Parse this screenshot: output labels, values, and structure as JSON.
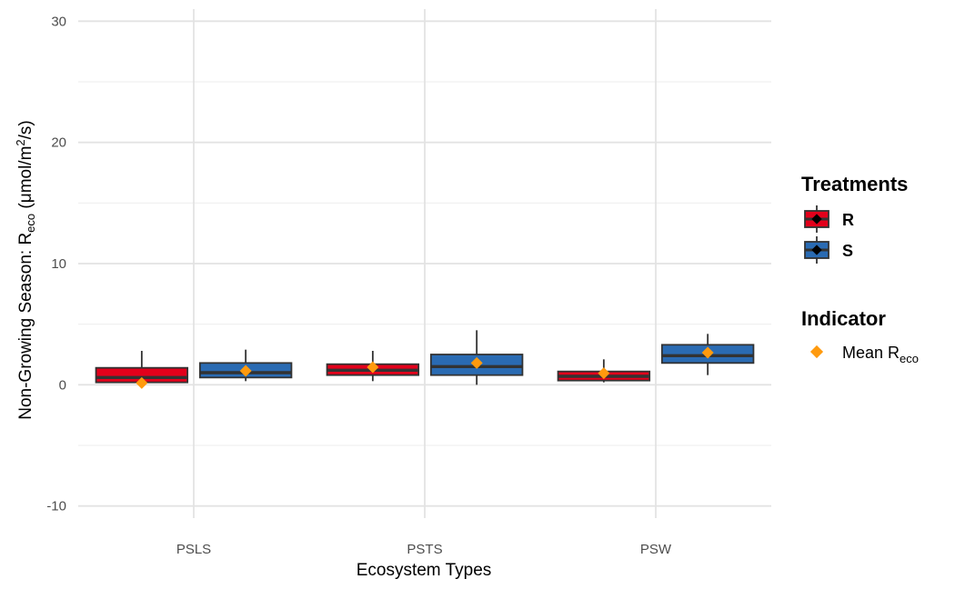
{
  "chart_data": {
    "type": "box",
    "xlabel": "Ecosystem Types",
    "ylabel_main": "Non-Growing Season: R",
    "ylabel_sub": "eco",
    "ylabel_unit_pre": " (μmol/m",
    "ylabel_unit_sup": "2",
    "ylabel_unit_post": "/s)",
    "ylim": [
      -11,
      31
    ],
    "yticks": [
      -10,
      0,
      10,
      20,
      30
    ],
    "ytick_labels": [
      "-10",
      "0",
      "10",
      "20",
      "30"
    ],
    "categories": [
      "PSLS",
      "PSTS",
      "PSW"
    ],
    "grid": true,
    "legend_position": "right",
    "series": [
      {
        "name": "R",
        "color": "#e3001b",
        "boxes": [
          {
            "category": "PSLS",
            "min": 0.0,
            "q1": 0.2,
            "median": 0.6,
            "q3": 1.4,
            "max": 2.8,
            "mean": 0.15
          },
          {
            "category": "PSTS",
            "min": 0.3,
            "q1": 0.8,
            "median": 1.2,
            "q3": 1.7,
            "max": 2.8,
            "mean": 1.45
          },
          {
            "category": "PSW",
            "min": 0.2,
            "q1": 0.35,
            "median": 0.7,
            "q3": 1.1,
            "max": 2.1,
            "mean": 0.95
          }
        ]
      },
      {
        "name": "S",
        "color": "#2a6bb3",
        "boxes": [
          {
            "category": "PSLS",
            "min": 0.3,
            "q1": 0.6,
            "median": 1.0,
            "q3": 1.8,
            "max": 2.9,
            "mean": 1.15
          },
          {
            "category": "PSTS",
            "min": 0.0,
            "q1": 0.8,
            "median": 1.5,
            "q3": 2.5,
            "max": 4.5,
            "mean": 1.8
          },
          {
            "category": "PSW",
            "min": 0.8,
            "q1": 1.8,
            "median": 2.4,
            "q3": 3.3,
            "max": 4.2,
            "mean": 2.65
          }
        ]
      }
    ],
    "mean_marker_color": "#ff9a0e"
  },
  "legend": {
    "treatments_title": "Treatments",
    "treatments": [
      {
        "label": "R",
        "color": "#e3001b"
      },
      {
        "label": "S",
        "color": "#2a6bb3"
      }
    ],
    "indicator_title": "Indicator",
    "indicator_label_main": "Mean R",
    "indicator_label_sub": "eco",
    "indicator_color": "#ff9a0e"
  }
}
